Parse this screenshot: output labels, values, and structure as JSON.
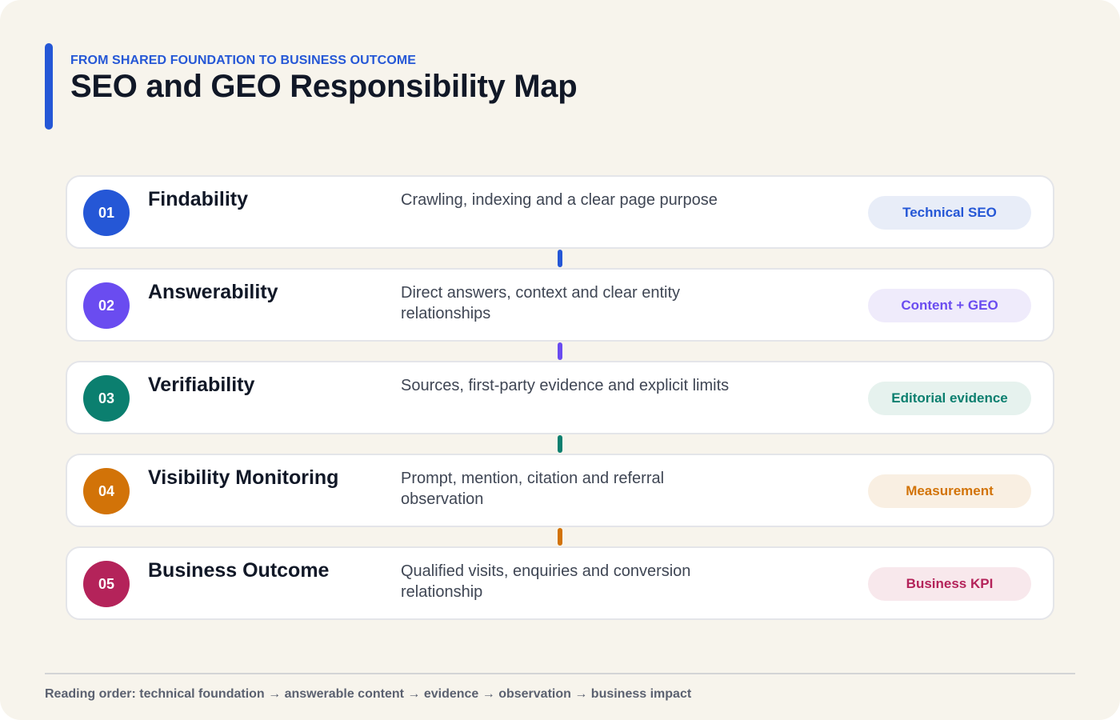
{
  "header": {
    "eyebrow": "FROM SHARED FOUNDATION TO BUSINESS OUTCOME",
    "title": "SEO and GEO Responsibility Map"
  },
  "steps": [
    {
      "number": "01",
      "title": "Findability",
      "description": "Crawling, indexing and a clear page purpose",
      "tag": "Technical SEO",
      "color": "#2557d6",
      "tag_bg": "#e8edf8",
      "tag_color": "#2557d6"
    },
    {
      "number": "02",
      "title": "Answerability",
      "description": "Direct answers, context and clear entity relationships",
      "tag": "Content + GEO",
      "color": "#6a4cf0",
      "tag_bg": "#efebfb",
      "tag_color": "#6a4cf0"
    },
    {
      "number": "03",
      "title": "Verifiability",
      "description": "Sources, first-party evidence and explicit limits",
      "tag": "Editorial evidence",
      "color": "#0b7f6f",
      "tag_bg": "#e6f2ee",
      "tag_color": "#0b7f6f"
    },
    {
      "number": "04",
      "title": "Visibility Monitoring",
      "description": "Prompt, mention, citation and referral observation",
      "tag": "Measurement",
      "color": "#d27308",
      "tag_bg": "#f9efe2",
      "tag_color": "#d27308"
    },
    {
      "number": "05",
      "title": "Business Outcome",
      "description": "Qualified visits, enquiries and conversion relationship",
      "tag": "Business KPI",
      "color": "#b4235a",
      "tag_bg": "#f8e8ec",
      "tag_color": "#b4235a"
    }
  ],
  "footer": "Reading order: technical foundation → answerable content → evidence → observation → business impact"
}
